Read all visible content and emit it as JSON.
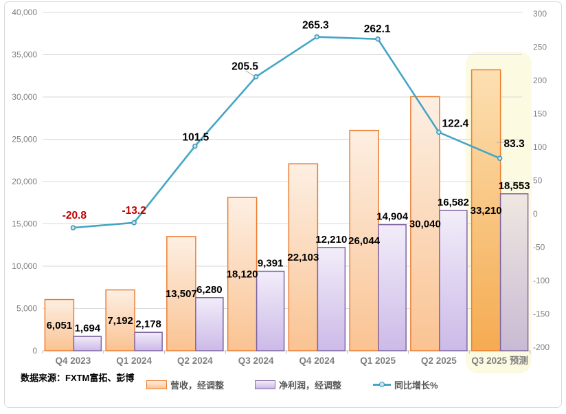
{
  "source_note": "数据来源：FXTM富拓、彭博",
  "legend": {
    "items": [
      {
        "label": "营收，经调整",
        "kind": "bar-orange"
      },
      {
        "label": "净利润，经调整",
        "kind": "bar-purple"
      },
      {
        "label": "同比增长%",
        "kind": "line"
      }
    ]
  },
  "colors": {
    "revenue_border": "#ED7D31",
    "revenue_fill_top": "#FDEFE3",
    "revenue_fill_bottom": "#FAC392",
    "revenue_forecast_top": "#FCE0B2",
    "revenue_forecast_bottom": "#F5AB51",
    "profit_border": "#8064A2",
    "profit_fill_top": "#F2EDF9",
    "profit_fill_bottom": "#CCBAE8",
    "profit_forecast_top": "#EFE8E1",
    "profit_forecast_bottom": "#C8BAD3",
    "growth_line": "#43A6C6",
    "marker_fill": "#C5E5F0",
    "marker_stroke": "#3D95B5",
    "gridline": "#D9D9D9",
    "axis_line": "#BFBFBF",
    "tick_text": "#7F7F7F",
    "x_label_text": "#7F7F7F",
    "value_label": "#000000",
    "negative_label": "#C00000",
    "highlight": "#FCFAE1",
    "leader": "#A6A6A6"
  },
  "chart_data": {
    "type": "bar",
    "subtype": "combo-bar-line",
    "title": "",
    "xlabel": "",
    "ylabel": "",
    "categories": [
      "Q4 2023",
      "Q1 2024",
      "Q2 2024",
      "Q3 2024",
      "Q4 2024",
      "Q1 2025",
      "Q2 2025",
      "Q3 2025 预测"
    ],
    "forecast_category_index": 7,
    "series": [
      {
        "name": "营收，经调整",
        "type": "bar",
        "axis": "left",
        "values": [
          6051,
          7192,
          13507,
          18120,
          22103,
          26044,
          30040,
          33210
        ],
        "labels": [
          "6,051",
          "7,192",
          "13,507",
          "18,120",
          "22,103",
          "26,044",
          "30,040",
          "33,210"
        ]
      },
      {
        "name": "净利润，经调整",
        "type": "bar",
        "axis": "left",
        "values": [
          1694,
          2178,
          6280,
          9391,
          12210,
          14904,
          16582,
          18553
        ],
        "labels": [
          "1,694",
          "2,178",
          "6,280",
          "9,391",
          "12,210",
          "14,904",
          "16,582",
          "18,553"
        ]
      },
      {
        "name": "同比增长%",
        "type": "line",
        "axis": "right",
        "values": [
          -20.8,
          -13.2,
          101.5,
          205.5,
          265.3,
          262.1,
          122.4,
          83.3
        ],
        "labels": [
          "-20.8",
          "-13.2",
          "101.5",
          "205.5",
          "265.3",
          "262.1",
          "122.4",
          "83.3"
        ]
      }
    ],
    "left_axis": {
      "min": 0,
      "max": 40000,
      "step": 5000,
      "tick_labels": [
        "0",
        "5,000",
        "10,000",
        "15,000",
        "20,000",
        "25,000",
        "30,000",
        "35,000",
        "40,000"
      ]
    },
    "right_axis": {
      "min": -200,
      "max": 300,
      "step": 50,
      "tick_labels": [
        "-200",
        "-150",
        "-100",
        "-50",
        "0",
        "50",
        "100",
        "150",
        "200",
        "250",
        "300"
      ]
    },
    "grid": true,
    "legend_position": "bottom"
  }
}
